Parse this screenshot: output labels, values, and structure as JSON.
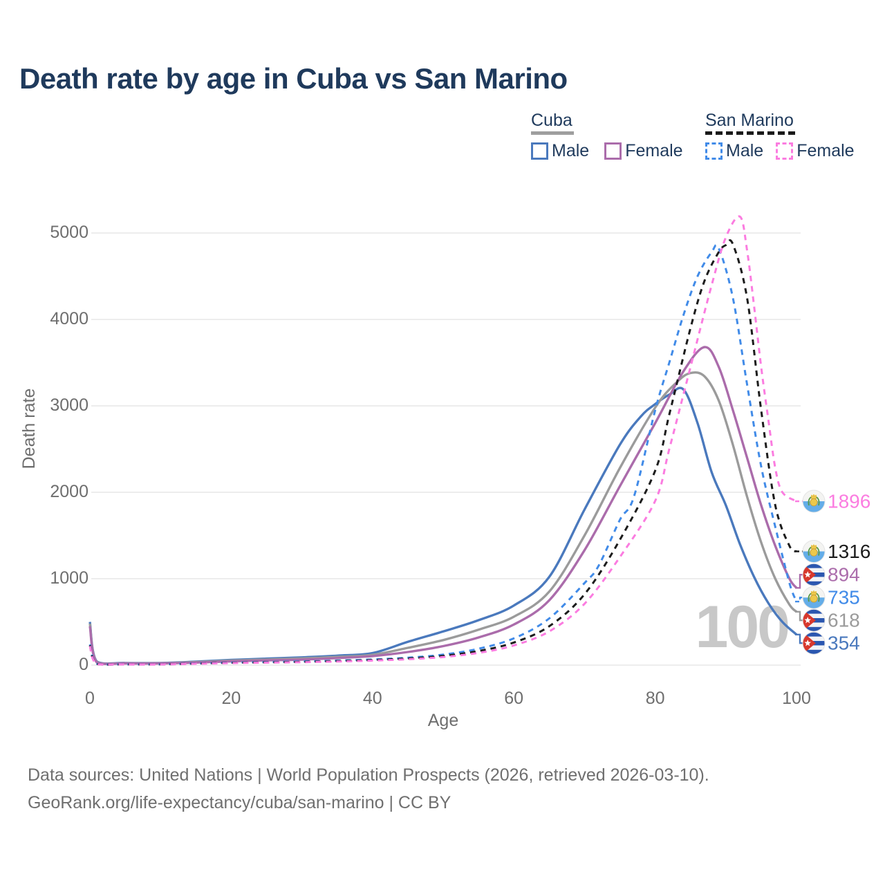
{
  "title": {
    "text": "Death rate by age in Cuba vs San Marino",
    "color": "#1f3a5c"
  },
  "legend": {
    "text_color": "#1f3a5c",
    "groups": [
      {
        "country": "Cuba",
        "line_style": "solid",
        "line_color": "#9e9e9e",
        "items": [
          {
            "label": "Male",
            "color": "#4a79bd"
          },
          {
            "label": "Female",
            "color": "#ab6cab"
          }
        ]
      },
      {
        "country": "San Marino",
        "line_style": "dashed",
        "line_color": "#1a1a1a",
        "items": [
          {
            "label": "Male",
            "color": "#418be8"
          },
          {
            "label": "Female",
            "color": "#fb7ce0"
          }
        ]
      }
    ]
  },
  "chart_data": {
    "type": "line",
    "title": "Death rate by age in Cuba vs San Marino",
    "xlabel": "Age",
    "ylabel": "Death rate",
    "xlim": [
      0,
      100
    ],
    "ylim": [
      0,
      5000
    ],
    "x_ticks": [
      "0",
      "20",
      "40",
      "60",
      "80",
      "100"
    ],
    "y_ticks": [
      "0",
      "1000",
      "2000",
      "3000",
      "4000",
      "5000"
    ],
    "grid": "horizontal-only",
    "gridline_color": "#ededed",
    "age_cursor": "100",
    "series": [
      {
        "name": "Cuba Male",
        "country": "Cuba",
        "sex": "Male",
        "color": "#4a79bd",
        "dashed": false,
        "end_value": 354,
        "points": [
          [
            0,
            500
          ],
          [
            1,
            40
          ],
          [
            5,
            25
          ],
          [
            10,
            25
          ],
          [
            15,
            40
          ],
          [
            20,
            60
          ],
          [
            25,
            75
          ],
          [
            30,
            90
          ],
          [
            35,
            110
          ],
          [
            40,
            140
          ],
          [
            45,
            270
          ],
          [
            50,
            390
          ],
          [
            55,
            520
          ],
          [
            60,
            690
          ],
          [
            65,
            1020
          ],
          [
            70,
            1800
          ],
          [
            75,
            2550
          ],
          [
            78,
            2880
          ],
          [
            80,
            3020
          ],
          [
            82,
            3130
          ],
          [
            84,
            3190
          ],
          [
            86,
            2800
          ],
          [
            88,
            2230
          ],
          [
            90,
            1850
          ],
          [
            92,
            1400
          ],
          [
            94,
            1020
          ],
          [
            96,
            720
          ],
          [
            98,
            500
          ],
          [
            100,
            354
          ]
        ]
      },
      {
        "name": "Cuba (both sexes)",
        "country": "Cuba",
        "sex": "Both",
        "color": "#9b9b9b",
        "dashed": false,
        "end_value": 618,
        "points": [
          [
            0,
            480
          ],
          [
            1,
            35
          ],
          [
            5,
            22
          ],
          [
            10,
            22
          ],
          [
            15,
            35
          ],
          [
            20,
            52
          ],
          [
            25,
            65
          ],
          [
            30,
            78
          ],
          [
            35,
            95
          ],
          [
            40,
            120
          ],
          [
            45,
            200
          ],
          [
            50,
            290
          ],
          [
            55,
            410
          ],
          [
            60,
            560
          ],
          [
            65,
            850
          ],
          [
            70,
            1500
          ],
          [
            75,
            2280
          ],
          [
            80,
            2980
          ],
          [
            83,
            3270
          ],
          [
            85,
            3380
          ],
          [
            87,
            3340
          ],
          [
            89,
            3060
          ],
          [
            91,
            2550
          ],
          [
            93,
            1950
          ],
          [
            95,
            1420
          ],
          [
            97,
            1000
          ],
          [
            99,
            700
          ],
          [
            100,
            618
          ]
        ]
      },
      {
        "name": "Cuba Female",
        "country": "Cuba",
        "sex": "Female",
        "color": "#ab6cab",
        "dashed": false,
        "end_value": 894,
        "points": [
          [
            0,
            450
          ],
          [
            1,
            30
          ],
          [
            5,
            20
          ],
          [
            10,
            20
          ],
          [
            15,
            30
          ],
          [
            20,
            44
          ],
          [
            25,
            55
          ],
          [
            30,
            64
          ],
          [
            35,
            82
          ],
          [
            40,
            105
          ],
          [
            45,
            152
          ],
          [
            50,
            220
          ],
          [
            55,
            320
          ],
          [
            60,
            470
          ],
          [
            65,
            750
          ],
          [
            70,
            1330
          ],
          [
            75,
            2070
          ],
          [
            80,
            2800
          ],
          [
            84,
            3400
          ],
          [
            87,
            3680
          ],
          [
            89,
            3450
          ],
          [
            91,
            2950
          ],
          [
            93,
            2400
          ],
          [
            95,
            1850
          ],
          [
            97,
            1380
          ],
          [
            99,
            1000
          ],
          [
            100,
            894
          ]
        ]
      },
      {
        "name": "San Marino Male",
        "country": "San Marino",
        "sex": "Male",
        "color": "#418be8",
        "dashed": true,
        "end_value": 735,
        "points": [
          [
            0,
            240
          ],
          [
            1,
            15
          ],
          [
            5,
            10
          ],
          [
            10,
            10
          ],
          [
            15,
            20
          ],
          [
            20,
            30
          ],
          [
            25,
            36
          ],
          [
            30,
            43
          ],
          [
            35,
            53
          ],
          [
            40,
            66
          ],
          [
            45,
            86
          ],
          [
            50,
            122
          ],
          [
            55,
            190
          ],
          [
            60,
            310
          ],
          [
            65,
            540
          ],
          [
            70,
            950
          ],
          [
            72,
            1150
          ],
          [
            75,
            1680
          ],
          [
            77,
            1950
          ],
          [
            80,
            2950
          ],
          [
            82,
            3500
          ],
          [
            84,
            4050
          ],
          [
            86,
            4500
          ],
          [
            88,
            4780
          ],
          [
            89,
            4820
          ],
          [
            91,
            4250
          ],
          [
            93,
            3250
          ],
          [
            95,
            2300
          ],
          [
            97,
            1600
          ],
          [
            99,
            950
          ],
          [
            100,
            735
          ]
        ]
      },
      {
        "name": "San Marino (both sexes)",
        "country": "San Marino",
        "sex": "Both",
        "color": "#1c1c1c",
        "dashed": true,
        "end_value": 1316,
        "points": [
          [
            0,
            230
          ],
          [
            1,
            14
          ],
          [
            5,
            9
          ],
          [
            10,
            9
          ],
          [
            15,
            18
          ],
          [
            20,
            27
          ],
          [
            25,
            32
          ],
          [
            30,
            38
          ],
          [
            35,
            47
          ],
          [
            40,
            59
          ],
          [
            45,
            77
          ],
          [
            50,
            107
          ],
          [
            55,
            163
          ],
          [
            60,
            262
          ],
          [
            65,
            450
          ],
          [
            70,
            820
          ],
          [
            75,
            1450
          ],
          [
            80,
            2250
          ],
          [
            82,
            2900
          ],
          [
            85,
            3900
          ],
          [
            87,
            4450
          ],
          [
            89,
            4780
          ],
          [
            90,
            4860
          ],
          [
            91,
            4870
          ],
          [
            93,
            4250
          ],
          [
            95,
            2950
          ],
          [
            97,
            1850
          ],
          [
            99,
            1380
          ],
          [
            100,
            1316
          ]
        ]
      },
      {
        "name": "San Marino Female",
        "country": "San Marino",
        "sex": "Female",
        "color": "#fb7ce0",
        "dashed": true,
        "end_value": 1896,
        "points": [
          [
            0,
            220
          ],
          [
            1,
            13
          ],
          [
            5,
            8
          ],
          [
            10,
            8
          ],
          [
            15,
            16
          ],
          [
            20,
            24
          ],
          [
            25,
            29
          ],
          [
            30,
            34
          ],
          [
            35,
            42
          ],
          [
            40,
            53
          ],
          [
            45,
            68
          ],
          [
            50,
            94
          ],
          [
            55,
            142
          ],
          [
            60,
            228
          ],
          [
            65,
            390
          ],
          [
            70,
            710
          ],
          [
            75,
            1250
          ],
          [
            80,
            1900
          ],
          [
            82,
            2500
          ],
          [
            85,
            3450
          ],
          [
            88,
            4400
          ],
          [
            90,
            4950
          ],
          [
            92,
            5190
          ],
          [
            93,
            4800
          ],
          [
            94,
            4150
          ],
          [
            95,
            3450
          ],
          [
            96,
            2850
          ],
          [
            97,
            2280
          ],
          [
            98,
            2000
          ],
          [
            100,
            1896
          ]
        ]
      }
    ],
    "annotations": [
      {
        "label": "1896",
        "series": "San Marino Female",
        "flag": "san-marino",
        "color": "#fb7ce0"
      },
      {
        "label": "1316",
        "series": "San Marino (both sexes)",
        "flag": "san-marino",
        "color": "#1c1c1c"
      },
      {
        "label": "894",
        "series": "Cuba Female",
        "flag": "cuba",
        "color": "#ab6cab"
      },
      {
        "label": "735",
        "series": "San Marino Male",
        "flag": "san-marino",
        "color": "#418be8"
      },
      {
        "label": "618",
        "series": "Cuba (both sexes)",
        "flag": "cuba",
        "color": "#9b9b9b"
      },
      {
        "label": "354",
        "series": "Cuba Male",
        "flag": "cuba",
        "color": "#4a79bd"
      }
    ]
  },
  "watermark": {
    "text": "100",
    "color": "#c8c8c8"
  },
  "footer": {
    "line1": "Data sources: United Nations | World Population Prospects (2026, retrieved 2026-03-10).",
    "line2": "GeoRank.org/life-expectancy/cuba/san-marino | CC BY",
    "color": "#6f6f6f"
  }
}
